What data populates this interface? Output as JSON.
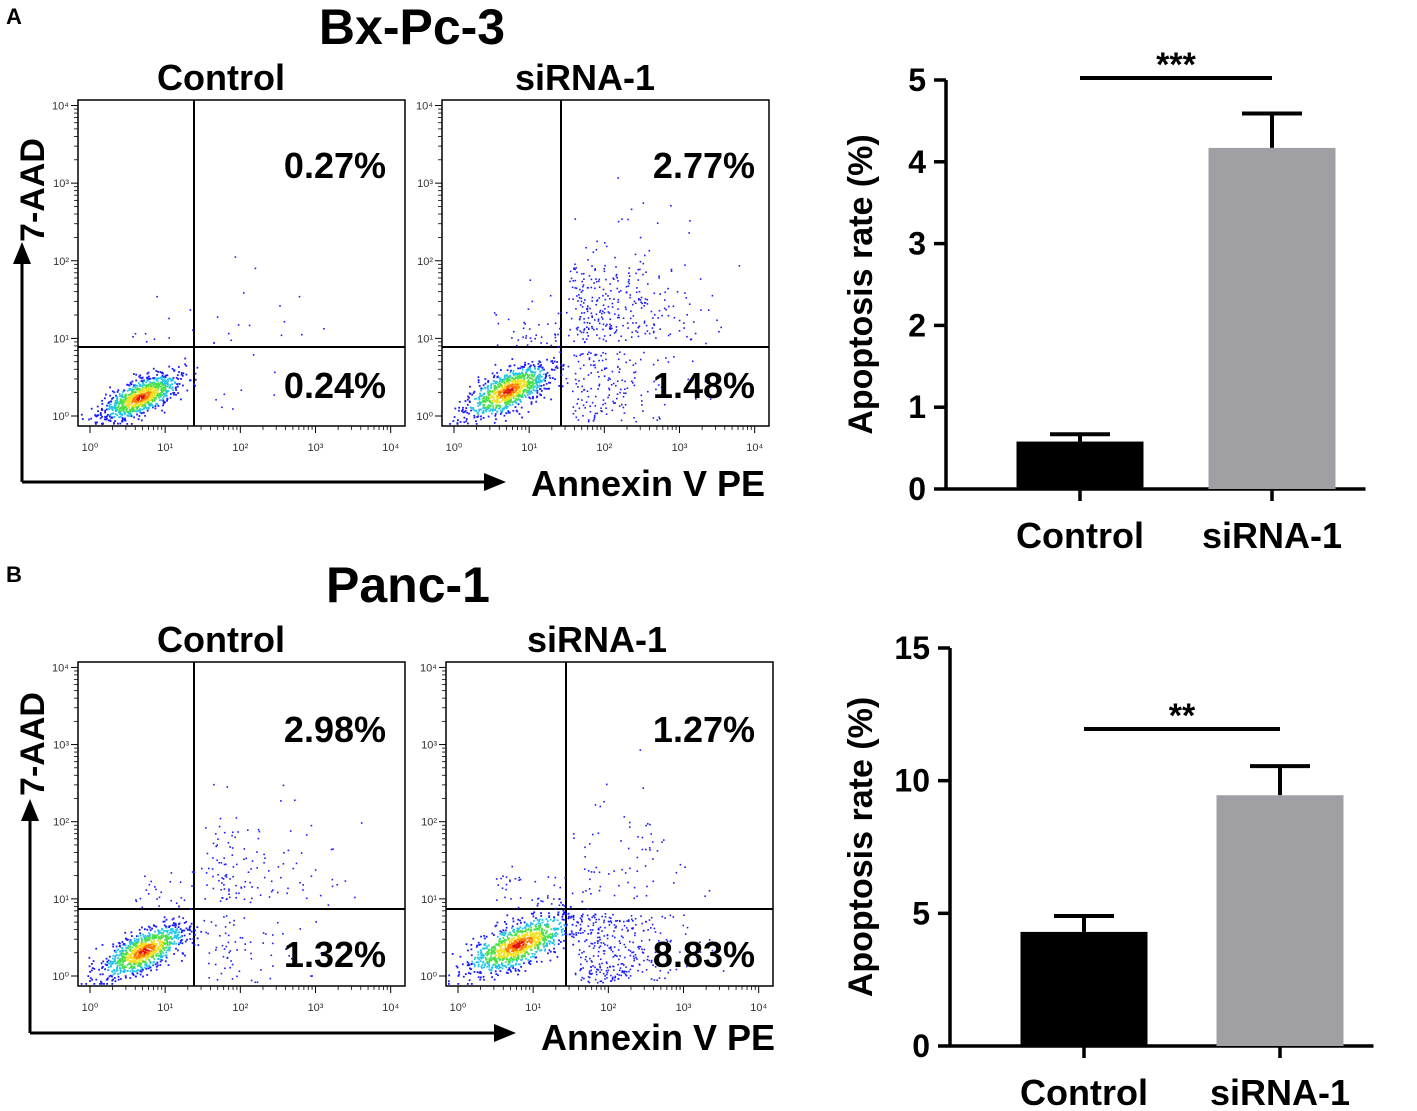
{
  "colors": {
    "dot_blue": "#1a1aff",
    "density_cyan": "#22c5e8",
    "density_green": "#48e048",
    "density_yellow": "#f0e020",
    "density_orange": "#ff7a00",
    "density_red": "#e01010",
    "bar_control": "#000000",
    "bar_sirna": "#a0a0a4"
  },
  "panels": [
    {
      "letter": "A",
      "cell_line": "Bx-Pc-3",
      "y_axis_label": "7-AAD",
      "x_axis_label": "Annexin V PE",
      "plots": [
        {
          "name": "Control",
          "quadrants": {
            "upper_right": "0.27%",
            "lower_right": "0.24%"
          },
          "population": "control_bx"
        },
        {
          "name": "siRNA-1",
          "quadrants": {
            "upper_right": "2.77%",
            "lower_right": "1.48%"
          },
          "population": "sirna_bx"
        }
      ]
    },
    {
      "letter": "B",
      "cell_line": "Panc-1",
      "y_axis_label": "7-AAD",
      "x_axis_label": "Annexin V PE",
      "plots": [
        {
          "name": "Control",
          "quadrants": {
            "upper_right": "2.98%",
            "lower_right": "1.32%"
          },
          "population": "control_panc"
        },
        {
          "name": "siRNA-1",
          "quadrants": {
            "upper_right": "1.27%",
            "lower_right": "8.83%"
          },
          "population": "sirna_panc"
        }
      ]
    }
  ],
  "flow_ticks": {
    "labels": [
      "10⁰",
      "10¹",
      "10²",
      "10³",
      "10⁴"
    ]
  },
  "chart_data": [
    {
      "type": "bar",
      "panel": "A",
      "categories": [
        "Control",
        "siRNA-1"
      ],
      "values": [
        0.58,
        4.17
      ],
      "errors": [
        0.09,
        0.42
      ],
      "ylabel": "Apoptosis rate (%)",
      "ylim": [
        0,
        5
      ],
      "yticks": [
        "0",
        "1",
        "2",
        "3",
        "4",
        "5"
      ],
      "significance": "***"
    },
    {
      "type": "bar",
      "panel": "B",
      "categories": [
        "Control",
        "siRNA-1"
      ],
      "values": [
        4.3,
        9.45
      ],
      "errors": [
        0.6,
        1.1
      ],
      "ylabel": "Apoptosis rate (%)",
      "ylim": [
        0,
        15
      ],
      "yticks": [
        "0",
        "5",
        "10",
        "15"
      ],
      "significance": "**"
    }
  ]
}
